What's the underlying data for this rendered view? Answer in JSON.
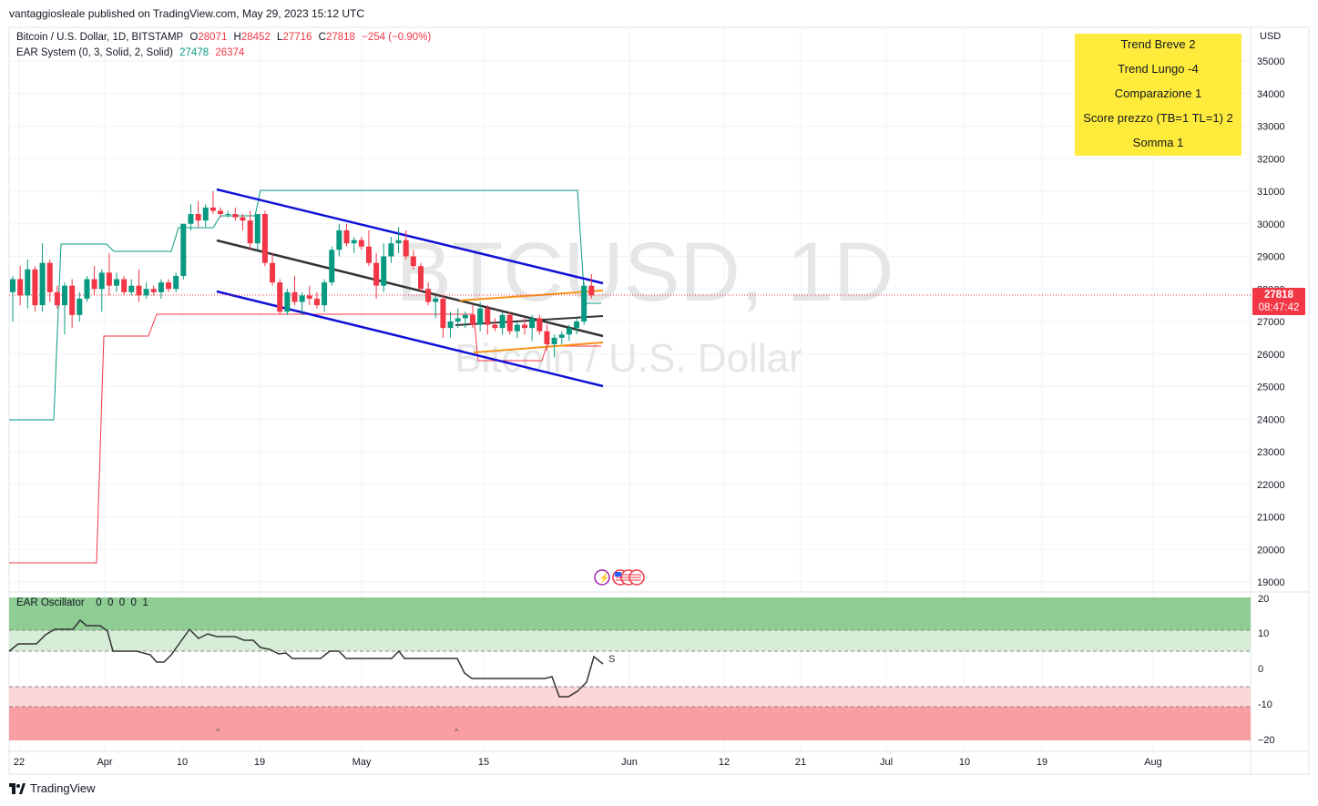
{
  "header": {
    "publisher": "vantaggiosleale published on TradingView.com, May 29, 2023 15:12 UTC"
  },
  "symbol_legend": {
    "name": "Bitcoin / U.S. Dollar, 1D, BITSTAMP",
    "open_label": "O",
    "open": "28071",
    "high_label": "H",
    "high": "28452",
    "low_label": "L",
    "low": "27716",
    "close_label": "C",
    "close": "27818",
    "change": "−254 (−0.90%)"
  },
  "indicator_legend": {
    "name": "EAR System (0, 3, Solid, 2, Solid)",
    "value1": "27478",
    "value2": "26374"
  },
  "info_box": {
    "line1": "Trend Breve 2",
    "line2": "Trend Lungo -4",
    "line3": "Comparazione 1",
    "line4": "Score prezzo (TB=1 TL=1) 2",
    "line5": "Somma 1"
  },
  "watermark": {
    "symbol": "BTCUSD, 1D",
    "description": "Bitcoin / U.S. Dollar"
  },
  "price_axis": {
    "currency": "USD",
    "ticks": [
      "35000",
      "34000",
      "33000",
      "32000",
      "31000",
      "30000",
      "29000",
      "28000",
      "27000",
      "26000",
      "25000",
      "24000",
      "23000",
      "22000",
      "21000",
      "20000",
      "19000"
    ],
    "last_price": "27818",
    "countdown": "08:47:42"
  },
  "oscillator": {
    "label": "EAR Oscillator",
    "values": "0  0  0  0  1",
    "ticks": [
      "20",
      "10",
      "0",
      "-10",
      "−20"
    ],
    "end_marker": "S"
  },
  "time_axis": {
    "ticks": [
      "22",
      "Apr",
      "10",
      "19",
      "May",
      "15",
      "Jun",
      "12",
      "21",
      "Jul",
      "10",
      "19",
      "Aug"
    ]
  },
  "colors": {
    "up": "#089981",
    "down": "#f23645",
    "channel": "#1010d8",
    "mid": "#333333",
    "orange": "#f7931a",
    "box": "#ffeb3b"
  },
  "footer": {
    "brand": "TradingView"
  }
}
